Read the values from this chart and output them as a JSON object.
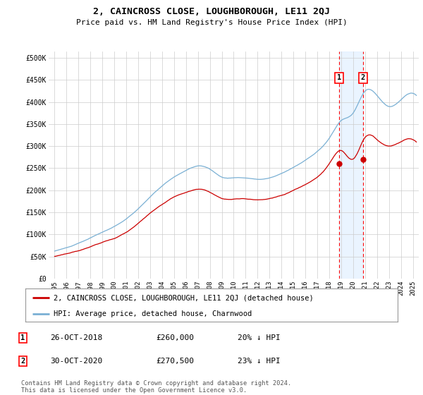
{
  "title": "2, CAINCROSS CLOSE, LOUGHBOROUGH, LE11 2QJ",
  "subtitle": "Price paid vs. HM Land Registry's House Price Index (HPI)",
  "ylabel_ticks": [
    "£0",
    "£50K",
    "£100K",
    "£150K",
    "£200K",
    "£250K",
    "£300K",
    "£350K",
    "£400K",
    "£450K",
    "£500K"
  ],
  "ytick_values": [
    0,
    50000,
    100000,
    150000,
    200000,
    250000,
    300000,
    350000,
    400000,
    450000,
    500000
  ],
  "ylim": [
    0,
    515000
  ],
  "xlim_start": 1994.5,
  "xlim_end": 2025.5,
  "hpi_color": "#7ab0d4",
  "price_color": "#cc0000",
  "transaction1": {
    "date_label": "26-OCT-2018",
    "price": 260000,
    "pct": "20%",
    "x": 2018.82
  },
  "transaction2": {
    "date_label": "30-OCT-2020",
    "price": 270500,
    "pct": "23%",
    "x": 2020.83
  },
  "legend_property": "2, CAINCROSS CLOSE, LOUGHBOROUGH, LE11 2QJ (detached house)",
  "legend_hpi": "HPI: Average price, detached house, Charnwood",
  "footer": "Contains HM Land Registry data © Crown copyright and database right 2024.\nThis data is licensed under the Open Government Licence v3.0.",
  "xtick_years": [
    1995,
    1996,
    1997,
    1998,
    1999,
    2000,
    2001,
    2002,
    2003,
    2004,
    2005,
    2006,
    2007,
    2008,
    2009,
    2010,
    2011,
    2012,
    2013,
    2014,
    2015,
    2016,
    2017,
    2018,
    2019,
    2020,
    2021,
    2022,
    2023,
    2024,
    2025
  ],
  "bg_color": "#ffffff",
  "grid_color": "#cccccc",
  "shade_color": "#ddeeff",
  "hpi_anchor_years": [
    1995,
    1996,
    1997,
    1998,
    1999,
    2000,
    2001,
    2002,
    2003,
    2004,
    2005,
    2006,
    2007,
    2008,
    2009,
    2010,
    2011,
    2012,
    2013,
    2014,
    2015,
    2016,
    2017,
    2018,
    2019,
    2020,
    2021,
    2022,
    2023,
    2024,
    2025
  ],
  "hpi_anchor_vals": [
    62000,
    70000,
    80000,
    92000,
    105000,
    118000,
    135000,
    158000,
    185000,
    210000,
    230000,
    245000,
    255000,
    248000,
    230000,
    228000,
    228000,
    225000,
    228000,
    238000,
    252000,
    268000,
    288000,
    318000,
    358000,
    375000,
    425000,
    415000,
    390000,
    405000,
    420000
  ],
  "pp_anchor_years": [
    1995,
    1996,
    1997,
    1998,
    1999,
    2000,
    2001,
    2002,
    2003,
    2004,
    2005,
    2006,
    2007,
    2008,
    2009,
    2010,
    2011,
    2012,
    2013,
    2014,
    2015,
    2016,
    2017,
    2018,
    2019,
    2020,
    2021,
    2022,
    2023,
    2024,
    2025
  ],
  "pp_anchor_vals": [
    50000,
    56000,
    63000,
    72000,
    82000,
    91000,
    105000,
    125000,
    148000,
    168000,
    185000,
    195000,
    202000,
    196000,
    182000,
    180000,
    181000,
    178000,
    181000,
    188000,
    200000,
    213000,
    230000,
    260000,
    290000,
    270500,
    320000,
    315000,
    300000,
    310000,
    315000
  ]
}
